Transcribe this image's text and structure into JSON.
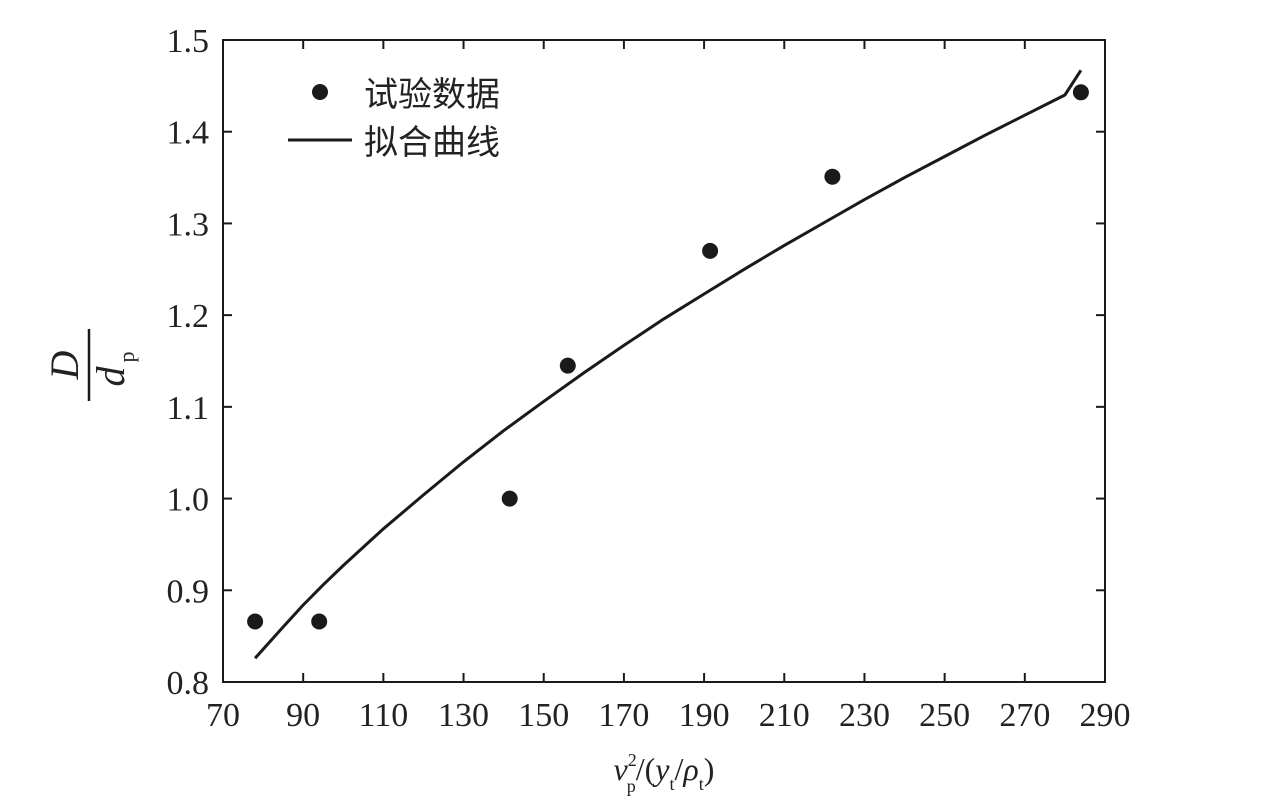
{
  "chart_data": {
    "type": "scatter",
    "title": "",
    "xlabel": "v_p^2/(y_t/ρ_t)",
    "ylabel": "D/d_p",
    "xlim": [
      70,
      290
    ],
    "ylim": [
      0.8,
      1.5
    ],
    "x_ticks": [
      70,
      90,
      110,
      130,
      150,
      170,
      190,
      210,
      230,
      250,
      270,
      290
    ],
    "y_ticks": [
      0.8,
      0.9,
      1.0,
      1.1,
      1.2,
      1.3,
      1.4,
      1.5
    ],
    "x_tick_labels": [
      "70",
      "90",
      "110",
      "130",
      "150",
      "170",
      "190",
      "210",
      "230",
      "250",
      "270",
      "290"
    ],
    "y_tick_labels": [
      "0.8",
      "0.9",
      "1.0",
      "1.1",
      "1.2",
      "1.3",
      "1.4",
      "1.5"
    ],
    "grid": false,
    "legend_position": "top-left",
    "series": [
      {
        "name": "试验数据",
        "kind": "scatter",
        "color": "#1a1a1a",
        "x": [
          78,
          94,
          141.5,
          156,
          191.5,
          222,
          284
        ],
        "y": [
          0.866,
          0.866,
          1.0,
          1.145,
          1.27,
          1.351,
          1.443
        ]
      },
      {
        "name": "拟合曲线",
        "kind": "line",
        "color": "#1a1a1a",
        "x": [
          78,
          85,
          90,
          95,
          100,
          110,
          120,
          130,
          140,
          150,
          160,
          170,
          180,
          190,
          200,
          210,
          220,
          230,
          240,
          250,
          260,
          270,
          280,
          284
        ],
        "y": [
          0.826,
          0.86,
          0.884,
          0.906,
          0.927,
          0.967,
          1.004,
          1.04,
          1.074,
          1.106,
          1.137,
          1.167,
          1.196,
          1.223,
          1.25,
          1.276,
          1.301,
          1.326,
          1.35,
          1.373,
          1.396,
          1.418,
          1.44,
          1.467
        ]
      }
    ]
  }
}
